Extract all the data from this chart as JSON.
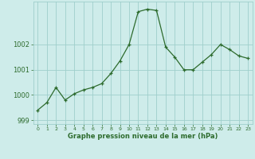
{
  "x": [
    0,
    1,
    2,
    3,
    4,
    5,
    6,
    7,
    8,
    9,
    10,
    11,
    12,
    13,
    14,
    15,
    16,
    17,
    18,
    19,
    20,
    21,
    22,
    23
  ],
  "y": [
    999.4,
    999.7,
    1000.3,
    999.8,
    1000.05,
    1000.2,
    1000.3,
    1000.45,
    1000.85,
    1001.35,
    1002.0,
    1003.3,
    1003.4,
    1003.35,
    1001.9,
    1001.5,
    1001.0,
    1001.0,
    1001.3,
    1001.6,
    1002.0,
    1001.8,
    1001.55,
    1001.45
  ],
  "line_color": "#2d6b2d",
  "marker_color": "#2d6b2d",
  "bg_color": "#ceecea",
  "grid_color": "#9fcfcb",
  "xlabel": "Graphe pression niveau de la mer (hPa)",
  "xlabel_color": "#2d6b2d",
  "tick_color": "#2d6b2d",
  "ylim": [
    998.85,
    1003.7
  ],
  "yticks": [
    999,
    1000,
    1001,
    1002
  ],
  "xlim": [
    -0.5,
    23.5
  ],
  "xticks": [
    0,
    1,
    2,
    3,
    4,
    5,
    6,
    7,
    8,
    9,
    10,
    11,
    12,
    13,
    14,
    15,
    16,
    17,
    18,
    19,
    20,
    21,
    22,
    23
  ]
}
